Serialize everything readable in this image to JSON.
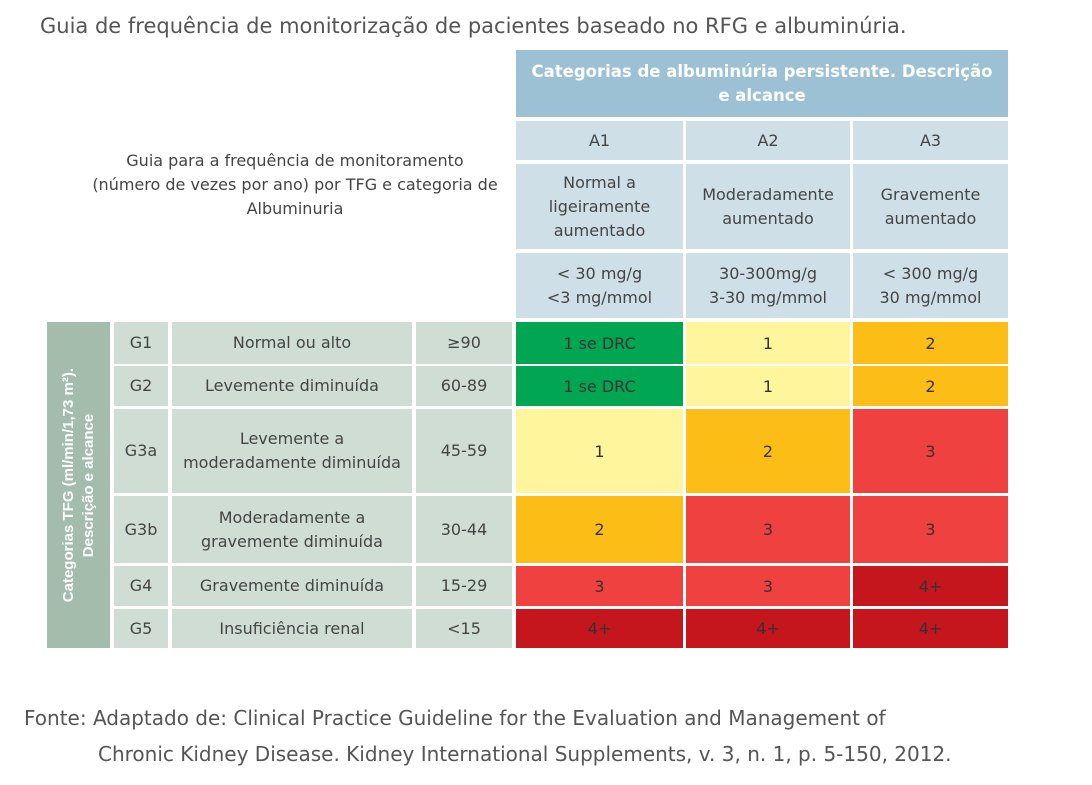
{
  "title": "Guia de frequência de monitorização de pacientes baseado no RFG e albuminúria.",
  "guide_text": "Guia para a frequência de monitoramento (número de vezes por ano) por TFG e categoria de Albuminuria",
  "albuminuria_header": "Categorias de albuminúria persistente. Descrição e alcance",
  "gfr_header_line1": "Categorias TFG (ml/min/1,73 m²).",
  "gfr_header_line2": "Descrição e alcance",
  "columns": [
    {
      "code": "A1",
      "desc": "Normal a ligeiramente aumentado",
      "range1": "< 30 mg/g",
      "range2": "<3 mg/mmol"
    },
    {
      "code": "A2",
      "desc": "Moderadamente aumentado",
      "range1": "30-300mg/g",
      "range2": "3-30 mg/mmol"
    },
    {
      "code": "A3",
      "desc": "Gravemente aumentado",
      "range1": "< 300 mg/g",
      "range2": "30 mg/mmol"
    }
  ],
  "colors": {
    "green": "#00a651",
    "yellow": "#fff59d",
    "orange": "#fdbd17",
    "red": "#ef4140",
    "darkred": "#c4161c"
  },
  "rows": [
    {
      "code": "G1",
      "desc": "Normal ou alto",
      "range": "≥90",
      "values": [
        "1 se DRC",
        "1",
        "2"
      ],
      "colors": [
        "green",
        "yellow",
        "orange"
      ]
    },
    {
      "code": "G2",
      "desc": "Levemente diminuída",
      "range": "60-89",
      "values": [
        "1 se DRC",
        "1",
        "2"
      ],
      "colors": [
        "green",
        "yellow",
        "orange"
      ]
    },
    {
      "code": "G3a",
      "desc": "Levemente a moderadamente diminuída",
      "range": "45-59",
      "values": [
        "1",
        "2",
        "3"
      ],
      "colors": [
        "yellow",
        "orange",
        "red"
      ]
    },
    {
      "code": "G3b",
      "desc": "Moderadamente  a gravemente diminuída",
      "range": "30-44",
      "values": [
        "2",
        "3",
        "3"
      ],
      "colors": [
        "orange",
        "red",
        "red"
      ]
    },
    {
      "code": "G4",
      "desc": "Gravemente diminuída",
      "range": "15-29",
      "values": [
        "3",
        "3",
        "4+"
      ],
      "colors": [
        "red",
        "red",
        "darkred"
      ]
    },
    {
      "code": "G5",
      "desc": "Insuficiência renal",
      "range": "<15",
      "values": [
        "4+",
        "4+",
        "4+"
      ],
      "colors": [
        "darkred",
        "darkred",
        "darkred"
      ]
    }
  ],
  "source_line1": "Fonte: Adaptado de: Clinical Practice Guideline for the Evaluation and Management of",
  "source_line2": "Chronic Kidney Disease. Kidney International Supplements, v. 3, n. 1, p. 5-150, 2012."
}
